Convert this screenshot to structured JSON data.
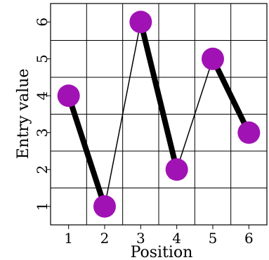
{
  "chart_data": {
    "type": "line",
    "xlabel": "Position",
    "ylabel": "Entry value",
    "x": [
      1,
      2,
      3,
      4,
      5,
      6
    ],
    "y": [
      4,
      1,
      6,
      2,
      5,
      3
    ],
    "xlim": [
      0.5,
      6.5
    ],
    "ylim": [
      0.5,
      6.5
    ],
    "xticks": [
      1,
      2,
      3,
      4,
      5,
      6
    ],
    "yticks": [
      1,
      2,
      3,
      4,
      5,
      6
    ],
    "grid": true,
    "segment_styles": [
      "thick",
      "thin",
      "thick",
      "thin",
      "thick"
    ],
    "colors": {
      "point": "#a012b4",
      "line": "#000000",
      "grid": "#000000"
    }
  }
}
